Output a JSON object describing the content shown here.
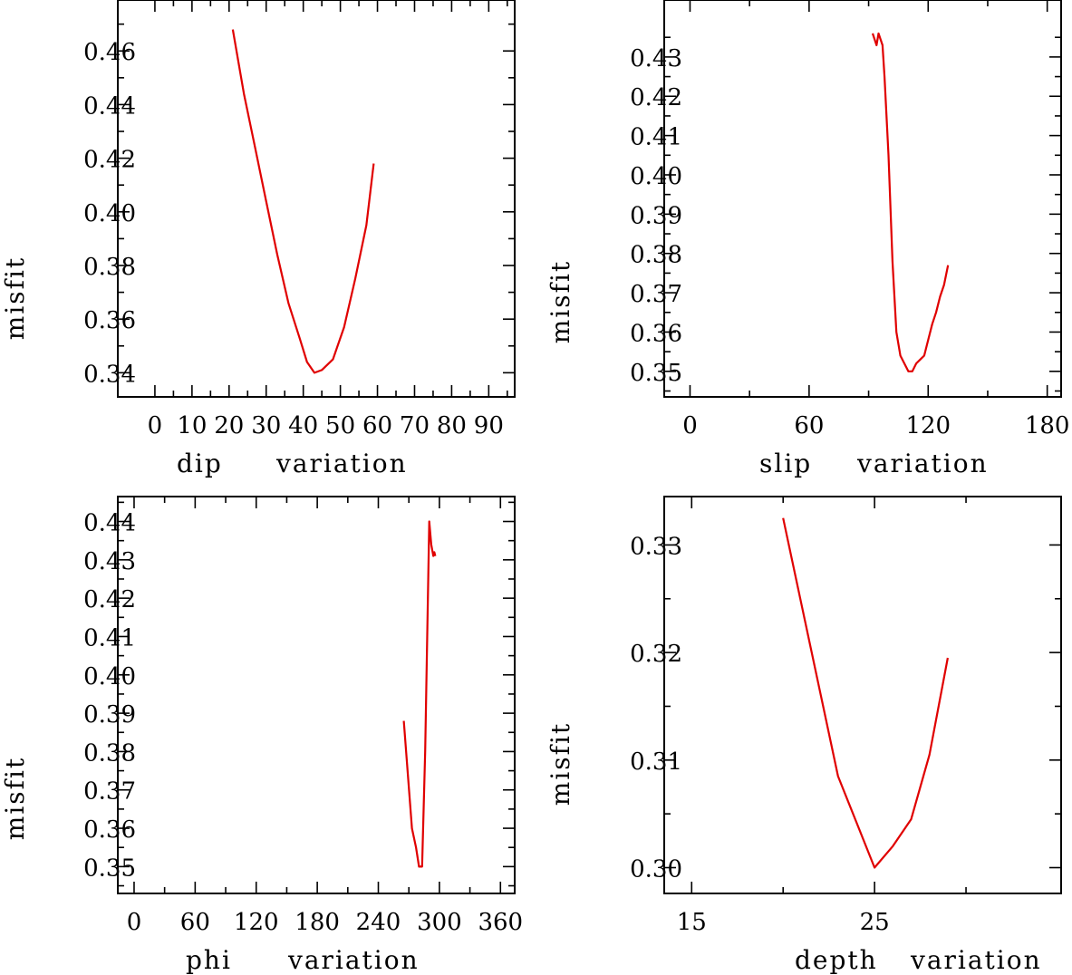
{
  "chart_data": [
    {
      "type": "line",
      "id": "dip",
      "xlabel_parts": [
        "dip",
        "variation"
      ],
      "ylabel": "misfit",
      "xlim": [
        -10,
        97
      ],
      "ylim": [
        0.331,
        0.479
      ],
      "xticks": [
        0,
        10,
        20,
        30,
        40,
        50,
        60,
        70,
        80,
        90
      ],
      "xtick_labels": [
        "0",
        "10",
        "20",
        "30",
        "40",
        "50",
        "60",
        "70",
        "80",
        "90"
      ],
      "xminor": [
        5,
        15,
        25,
        35,
        45,
        55,
        65,
        75,
        85,
        95
      ],
      "yticks": [
        0.34,
        0.36,
        0.38,
        0.4,
        0.42,
        0.44,
        0.46
      ],
      "ytick_labels": [
        "0.34",
        "0.36",
        "0.38",
        "0.40",
        "0.42",
        "0.44",
        "0.46"
      ],
      "yminor": [
        0.33,
        0.35,
        0.37,
        0.39,
        0.41,
        0.43,
        0.45,
        0.47
      ],
      "x": [
        21,
        24,
        27,
        30,
        33,
        36,
        39,
        41,
        43,
        45,
        48,
        51,
        54,
        57,
        59
      ],
      "y": [
        0.468,
        0.444,
        0.424,
        0.404,
        0.384,
        0.366,
        0.353,
        0.344,
        0.34,
        0.341,
        0.345,
        0.357,
        0.375,
        0.395,
        0.418
      ]
    },
    {
      "type": "line",
      "id": "slip",
      "xlabel_parts": [
        "slip",
        "variation"
      ],
      "ylabel": "misfit",
      "xlim": [
        -13,
        187
      ],
      "ylim": [
        0.3435,
        0.4445
      ],
      "xticks": [
        0,
        60,
        120,
        180
      ],
      "xtick_labels": [
        "0",
        "60",
        "120",
        "180"
      ],
      "xminor": [
        30,
        90,
        150
      ],
      "yticks": [
        0.35,
        0.36,
        0.37,
        0.38,
        0.39,
        0.4,
        0.41,
        0.42,
        0.43
      ],
      "ytick_labels": [
        "0.35",
        "0.36",
        "0.37",
        "0.38",
        "0.39",
        "0.40",
        "0.41",
        "0.42",
        "0.43"
      ],
      "yminor": [
        0.345,
        0.355,
        0.365,
        0.375,
        0.385,
        0.395,
        0.405,
        0.415,
        0.425,
        0.435
      ],
      "x": [
        92,
        94,
        95,
        97,
        98,
        100,
        102,
        104,
        106,
        108,
        110,
        112,
        114,
        116,
        118,
        120,
        122,
        124,
        126,
        128,
        130
      ],
      "y": [
        0.436,
        0.433,
        0.436,
        0.433,
        0.425,
        0.405,
        0.378,
        0.36,
        0.354,
        0.352,
        0.35,
        0.35,
        0.352,
        0.353,
        0.354,
        0.358,
        0.362,
        0.365,
        0.369,
        0.372,
        0.377
      ]
    },
    {
      "type": "line",
      "id": "phi",
      "xlabel_parts": [
        "phi",
        "variation"
      ],
      "ylabel": "misfit",
      "xlim": [
        -16,
        374
      ],
      "ylim": [
        0.343,
        0.4465
      ],
      "xticks": [
        0,
        60,
        120,
        180,
        240,
        300,
        360
      ],
      "xtick_labels": [
        "0",
        "60",
        "120",
        "180",
        "240",
        "300",
        "360"
      ],
      "xminor": [
        30,
        90,
        150,
        210,
        270,
        330
      ],
      "yticks": [
        0.35,
        0.36,
        0.37,
        0.38,
        0.39,
        0.4,
        0.41,
        0.42,
        0.43,
        0.44
      ],
      "ytick_labels": [
        "0.35",
        "0.36",
        "0.37",
        "0.38",
        "0.39",
        "0.40",
        "0.41",
        "0.42",
        "0.43",
        "0.44"
      ],
      "yminor": [
        0.345,
        0.355,
        0.365,
        0.375,
        0.385,
        0.395,
        0.405,
        0.415,
        0.425,
        0.435,
        0.445
      ],
      "x": [
        265,
        269,
        273,
        277,
        280,
        283,
        286,
        290,
        292,
        294,
        295,
        296
      ],
      "y": [
        0.388,
        0.374,
        0.36,
        0.355,
        0.35,
        0.35,
        0.38,
        0.44,
        0.434,
        0.431,
        0.432,
        0.431
      ]
    },
    {
      "type": "line",
      "id": "depth",
      "xlabel_parts": [
        "depth",
        "variation"
      ],
      "ylabel": "misfit",
      "xlim": [
        13.5,
        35.2
      ],
      "ylim": [
        0.2976,
        0.3345
      ],
      "xticks": [
        15,
        25
      ],
      "xtick_labels": [
        "15",
        "25"
      ],
      "xminor": [
        20,
        30
      ],
      "yticks": [
        0.3,
        0.31,
        0.32,
        0.33
      ],
      "ytick_labels": [
        "0.30",
        "0.31",
        "0.32",
        "0.33"
      ],
      "yminor": [
        0.305,
        0.315,
        0.325
      ],
      "x": [
        20,
        23,
        25,
        26,
        27,
        28,
        29
      ],
      "y": [
        0.3325,
        0.3085,
        0.3,
        0.302,
        0.3045,
        0.3105,
        0.3195
      ]
    }
  ]
}
